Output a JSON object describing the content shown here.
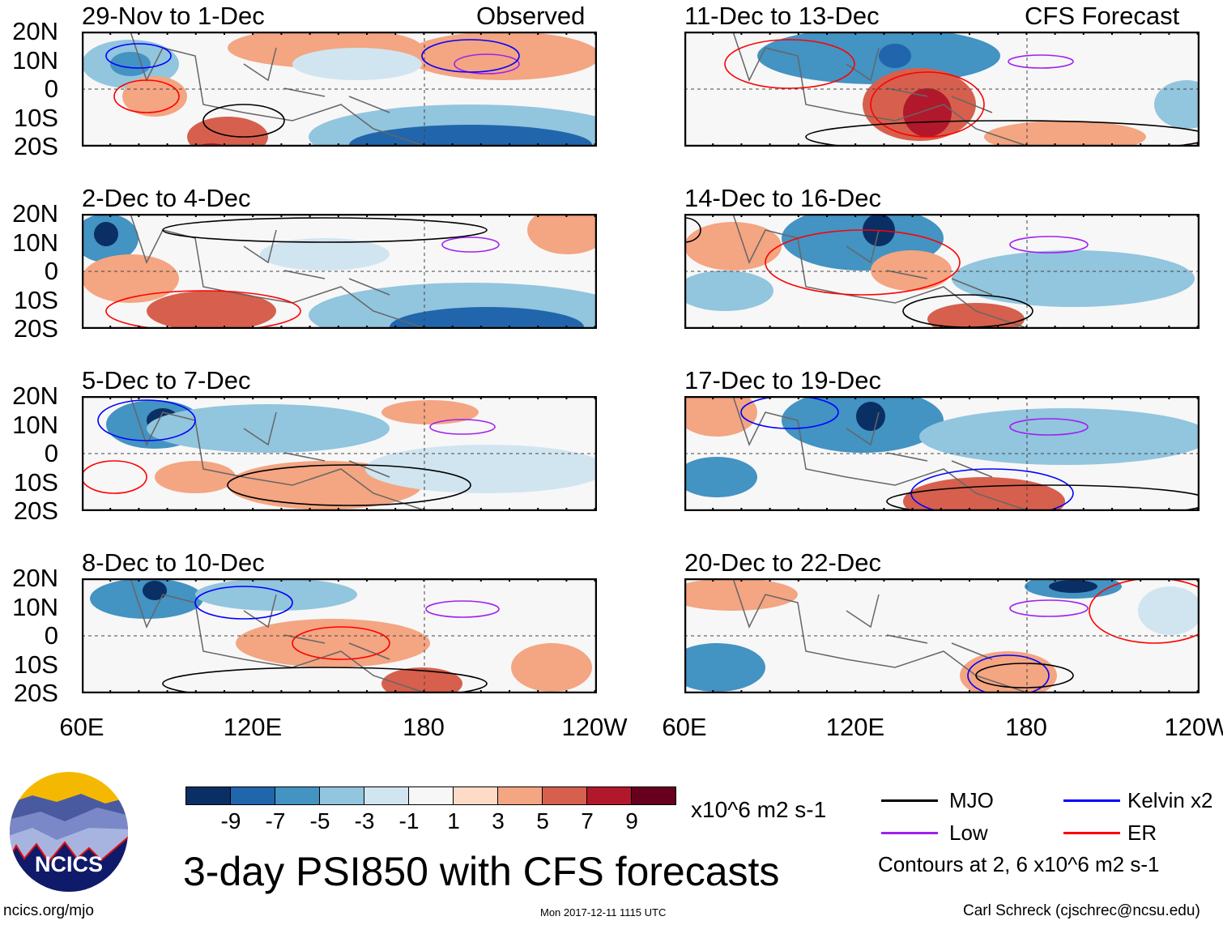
{
  "header": {
    "observed_label": "Observed",
    "forecast_label": "CFS Forecast"
  },
  "panels": {
    "left": [
      "29-Nov to 1-Dec",
      "2-Dec to 4-Dec",
      "5-Dec to 7-Dec",
      "8-Dec to 10-Dec"
    ],
    "right": [
      "11-Dec to 13-Dec",
      "14-Dec to 16-Dec",
      "17-Dec to 19-Dec",
      "20-Dec to 22-Dec"
    ]
  },
  "lat_labels": [
    "20N",
    "10N",
    "0",
    "10S",
    "20S"
  ],
  "lon_labels": [
    "60E",
    "120E",
    "180",
    "120W"
  ],
  "colorbar": {
    "colors": [
      "#0a2f64",
      "#2166ac",
      "#4393c3",
      "#92c5de",
      "#d1e5f0",
      "#f7f7f7",
      "#fddbc7",
      "#f4a582",
      "#d6604d",
      "#b2182b",
      "#67001f"
    ],
    "labels": [
      "-9",
      "-7",
      "-5",
      "-3",
      "-1",
      "1",
      "3",
      "5",
      "7",
      "9"
    ],
    "units": "x10^6 m2 s-1"
  },
  "legend": {
    "items": [
      {
        "label": "MJO",
        "color": "#000000"
      },
      {
        "label": "Kelvin x2",
        "color": "#0000ff"
      },
      {
        "label": "Low",
        "color": "#a020f0"
      },
      {
        "label": "ER",
        "color": "#ff0000"
      }
    ],
    "note": "Contours at 2, 6 x10^6 m2 s-1"
  },
  "title": "3-day PSI850 with CFS forecasts",
  "logo_text": "NCICS",
  "footer": {
    "url": "ncics.org/mjo",
    "timestamp": "Mon 2017-12-11 1115 UTC",
    "credit": "Carl Schreck (cjschrec@ncsu.edu)"
  }
}
